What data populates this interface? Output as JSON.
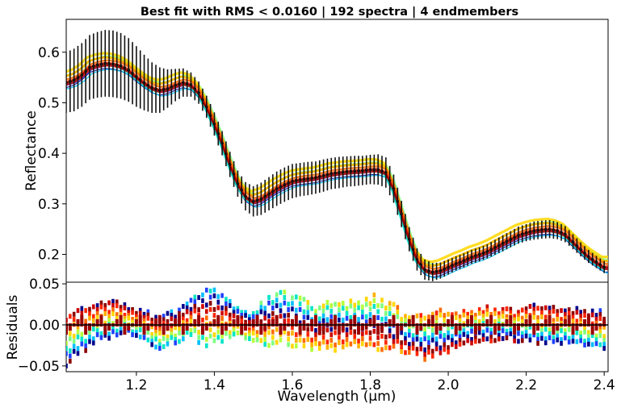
{
  "figure": {
    "title": "Best fit with RMS < 0.0160 | 192 spectra | 4 endmembers"
  },
  "chart_data": [
    {
      "type": "line",
      "panel": "top",
      "ylabel": "Reflectance",
      "xlim": [
        1.02,
        2.41
      ],
      "ylim": [
        0.145,
        0.665
      ],
      "yticks": [
        0.2,
        0.3,
        0.4,
        0.5,
        0.6
      ],
      "ytick_labels": [
        "0.2",
        "0.3",
        "0.4",
        "0.5",
        "0.6"
      ],
      "grid": false,
      "reference_spectrum": {
        "x": [
          1.02,
          1.04,
          1.06,
          1.08,
          1.1,
          1.12,
          1.14,
          1.16,
          1.18,
          1.2,
          1.22,
          1.24,
          1.26,
          1.28,
          1.3,
          1.32,
          1.34,
          1.36,
          1.38,
          1.4,
          1.42,
          1.44,
          1.46,
          1.48,
          1.5,
          1.52,
          1.54,
          1.56,
          1.58,
          1.6,
          1.62,
          1.64,
          1.66,
          1.68,
          1.7,
          1.72,
          1.74,
          1.76,
          1.78,
          1.8,
          1.82,
          1.84,
          1.86,
          1.88,
          1.9,
          1.92,
          1.94,
          1.96,
          1.98,
          2.0,
          2.02,
          2.04,
          2.06,
          2.08,
          2.1,
          2.12,
          2.14,
          2.16,
          2.18,
          2.2,
          2.22,
          2.24,
          2.26,
          2.28,
          2.3,
          2.32,
          2.34,
          2.36,
          2.38,
          2.4
        ],
        "y": [
          0.54,
          0.545,
          0.555,
          0.57,
          0.575,
          0.578,
          0.577,
          0.573,
          0.565,
          0.552,
          0.54,
          0.53,
          0.525,
          0.528,
          0.535,
          0.54,
          0.536,
          0.52,
          0.492,
          0.458,
          0.42,
          0.378,
          0.34,
          0.315,
          0.305,
          0.31,
          0.32,
          0.33,
          0.338,
          0.345,
          0.348,
          0.35,
          0.352,
          0.356,
          0.36,
          0.362,
          0.364,
          0.365,
          0.366,
          0.368,
          0.368,
          0.362,
          0.33,
          0.28,
          0.23,
          0.19,
          0.17,
          0.165,
          0.168,
          0.175,
          0.182,
          0.188,
          0.195,
          0.2,
          0.206,
          0.214,
          0.222,
          0.23,
          0.238,
          0.243,
          0.247,
          0.249,
          0.25,
          0.247,
          0.24,
          0.225,
          0.21,
          0.196,
          0.185,
          0.175
        ],
        "err": [
          0.06,
          0.062,
          0.063,
          0.064,
          0.065,
          0.066,
          0.066,
          0.065,
          0.063,
          0.06,
          0.055,
          0.05,
          0.045,
          0.038,
          0.032,
          0.028,
          0.024,
          0.022,
          0.022,
          0.023,
          0.024,
          0.025,
          0.026,
          0.028,
          0.03,
          0.032,
          0.033,
          0.034,
          0.034,
          0.034,
          0.033,
          0.033,
          0.032,
          0.032,
          0.031,
          0.031,
          0.03,
          0.03,
          0.029,
          0.029,
          0.03,
          0.03,
          0.028,
          0.026,
          0.024,
          0.022,
          0.02,
          0.018,
          0.016,
          0.015,
          0.014,
          0.014,
          0.014,
          0.014,
          0.014,
          0.015,
          0.016,
          0.016,
          0.017,
          0.017,
          0.018,
          0.018,
          0.018,
          0.017,
          0.016,
          0.015,
          0.014,
          0.013,
          0.012,
          0.012
        ]
      },
      "series": [
        {
          "color": "#00008b",
          "offset": -0.01,
          "shift": 0.0,
          "width": 1.2
        },
        {
          "color": "#1e40ff",
          "offset": -0.005,
          "shift": 0.004,
          "width": 1.4
        },
        {
          "color": "#00bfff",
          "offset": -0.012,
          "shift": 0.006,
          "width": 1.4
        },
        {
          "color": "#00e5c8",
          "offset": -0.004,
          "shift": -0.004,
          "width": 2.0
        },
        {
          "color": "#7fff7f",
          "offset": 0.014,
          "shift": 0.002,
          "width": 2.4
        },
        {
          "color": "#b5ff3a",
          "offset": 0.012,
          "shift": -0.002,
          "width": 2.2
        },
        {
          "color": "#ffd700",
          "offset": 0.02,
          "shift": -0.006,
          "width": 3.4
        },
        {
          "color": "#ffb000",
          "offset": 0.012,
          "shift": -0.003,
          "width": 3.0
        },
        {
          "color": "#ff6a00",
          "offset": 0.006,
          "shift": 0.002,
          "width": 2.6
        },
        {
          "color": "#ff2400",
          "offset": 0.001,
          "shift": 0.0,
          "width": 2.4
        },
        {
          "color": "#cc0000",
          "offset": -0.004,
          "shift": 0.001,
          "width": 2.6
        },
        {
          "color": "#8b0000",
          "offset": -0.001,
          "shift": -0.001,
          "width": 2.0
        }
      ]
    },
    {
      "type": "scatter",
      "panel": "bottom",
      "xlabel": "Wavelength (μm)",
      "ylabel": "Residuals",
      "xlim": [
        1.02,
        2.41
      ],
      "ylim": [
        -0.057,
        0.052
      ],
      "xticks": [
        1.2,
        1.4,
        1.6,
        1.8,
        2.0,
        2.2,
        2.4
      ],
      "xtick_labels": [
        "1.2",
        "1.4",
        "1.6",
        "1.8",
        "2.0",
        "2.2",
        "2.4"
      ],
      "yticks": [
        -0.05,
        0.0,
        0.05
      ],
      "ytick_labels": [
        "−0.05",
        "0.00",
        "0.05"
      ],
      "zero_line": 0,
      "residual_amplitude": {
        "x": [
          1.02,
          1.06,
          1.1,
          1.14,
          1.18,
          1.22,
          1.26,
          1.3,
          1.34,
          1.38,
          1.42,
          1.46,
          1.5,
          1.54,
          1.58,
          1.62,
          1.66,
          1.7,
          1.74,
          1.78,
          1.82,
          1.86,
          1.9,
          1.94,
          1.98,
          2.02,
          2.06,
          2.1,
          2.14,
          2.18,
          2.22,
          2.26,
          2.3,
          2.34,
          2.38,
          2.41
        ],
        "lo": [
          -0.05,
          -0.035,
          -0.02,
          -0.015,
          -0.01,
          -0.018,
          -0.03,
          -0.022,
          -0.015,
          -0.028,
          -0.02,
          -0.012,
          -0.02,
          -0.025,
          -0.022,
          -0.03,
          -0.03,
          -0.032,
          -0.028,
          -0.025,
          -0.03,
          -0.03,
          -0.035,
          -0.042,
          -0.038,
          -0.028,
          -0.022,
          -0.02,
          -0.018,
          -0.02,
          -0.022,
          -0.024,
          -0.022,
          -0.024,
          -0.026,
          -0.03
        ],
        "hi": [
          0.01,
          0.02,
          0.025,
          0.032,
          0.022,
          0.018,
          0.01,
          0.018,
          0.03,
          0.045,
          0.04,
          0.02,
          0.015,
          0.038,
          0.04,
          0.035,
          0.02,
          0.03,
          0.028,
          0.032,
          0.038,
          0.025,
          0.01,
          0.012,
          0.018,
          0.015,
          0.018,
          0.022,
          0.02,
          0.018,
          0.024,
          0.022,
          0.02,
          0.02,
          0.018,
          0.016
        ]
      }
    }
  ]
}
